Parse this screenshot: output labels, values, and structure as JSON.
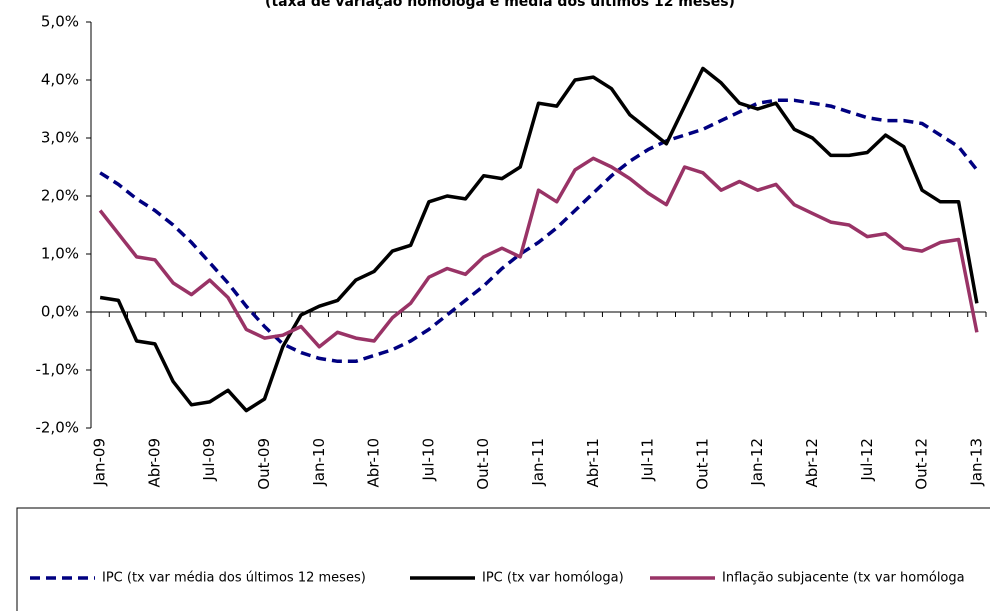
{
  "chart_data": {
    "type": "line",
    "title": "(taxa de variação homóloga e média dos últimos 12 meses)",
    "categories": [
      "Jan-09",
      null,
      null,
      "Abr-09",
      null,
      null,
      "Jul-09",
      null,
      null,
      "Out-09",
      null,
      null,
      "Jan-10",
      null,
      null,
      "Abr-10",
      null,
      null,
      "Jul-10",
      null,
      null,
      "Out-10",
      null,
      null,
      "Jan-11",
      null,
      null,
      "Abr-11",
      null,
      null,
      "Jul-11",
      null,
      null,
      "Out-11",
      null,
      null,
      "Jan-12",
      null,
      null,
      "Abr-12",
      null,
      null,
      "Jul-12",
      null,
      null,
      "Out-12",
      null,
      null,
      "Jan-13"
    ],
    "series": [
      {
        "name": "IPC (tx var média dos últimos 12 meses)",
        "color": "#000080",
        "dashed": true,
        "values": [
          2.4,
          2.2,
          1.95,
          1.75,
          1.5,
          1.2,
          0.85,
          0.5,
          0.1,
          -0.25,
          -0.55,
          -0.7,
          -0.8,
          -0.85,
          -0.85,
          -0.75,
          -0.65,
          -0.5,
          -0.3,
          -0.05,
          0.2,
          0.45,
          0.75,
          1.0,
          1.2,
          1.45,
          1.75,
          2.05,
          2.35,
          2.6,
          2.8,
          2.95,
          3.05,
          3.15,
          3.3,
          3.45,
          3.6,
          3.65,
          3.65,
          3.6,
          3.55,
          3.45,
          3.35,
          3.3,
          3.3,
          3.25,
          3.05,
          2.85,
          2.45
        ]
      },
      {
        "name": "IPC (tx var homóloga)",
        "color": "#000000",
        "dashed": false,
        "values": [
          0.25,
          0.2,
          -0.5,
          -0.55,
          -1.2,
          -1.6,
          -1.55,
          -1.35,
          -1.7,
          -1.5,
          -0.6,
          -0.05,
          0.1,
          0.2,
          0.55,
          0.7,
          1.05,
          1.15,
          1.9,
          2.0,
          1.95,
          2.35,
          2.3,
          2.5,
          3.6,
          3.55,
          4.0,
          4.05,
          3.85,
          3.4,
          3.15,
          2.9,
          3.55,
          4.2,
          3.95,
          3.6,
          3.5,
          3.6,
          3.15,
          3.0,
          2.7,
          2.7,
          2.75,
          3.05,
          2.85,
          2.1,
          1.9,
          1.9,
          0.15
        ]
      },
      {
        "name": "Inflação subjacente (tx var homóloga",
        "color": "#993366",
        "dashed": false,
        "values": [
          1.75,
          1.35,
          0.95,
          0.9,
          0.5,
          0.3,
          0.55,
          0.25,
          -0.3,
          -0.45,
          -0.4,
          -0.25,
          -0.6,
          -0.35,
          -0.45,
          -0.5,
          -0.1,
          0.15,
          0.6,
          0.75,
          0.65,
          0.95,
          1.1,
          0.95,
          2.1,
          1.9,
          2.45,
          2.65,
          2.5,
          2.3,
          2.05,
          1.85,
          2.5,
          2.4,
          2.1,
          2.25,
          2.1,
          2.2,
          1.85,
          1.7,
          1.55,
          1.5,
          1.3,
          1.35,
          1.1,
          1.05,
          1.2,
          1.25,
          -0.35
        ]
      }
    ],
    "ylim": [
      -2,
      5
    ],
    "yticks": [
      {
        "value": -2,
        "label": "-2,0%"
      },
      {
        "value": -1,
        "label": "-1,0%"
      },
      {
        "value": 0,
        "label": "0,0%"
      },
      {
        "value": 1,
        "label": "1,0%"
      },
      {
        "value": 2,
        "label": "2,0%"
      },
      {
        "value": 3,
        "label": "3,0%"
      },
      {
        "value": 4,
        "label": "4,0%"
      },
      {
        "value": 5,
        "label": "5,0%"
      }
    ],
    "grid": false
  }
}
